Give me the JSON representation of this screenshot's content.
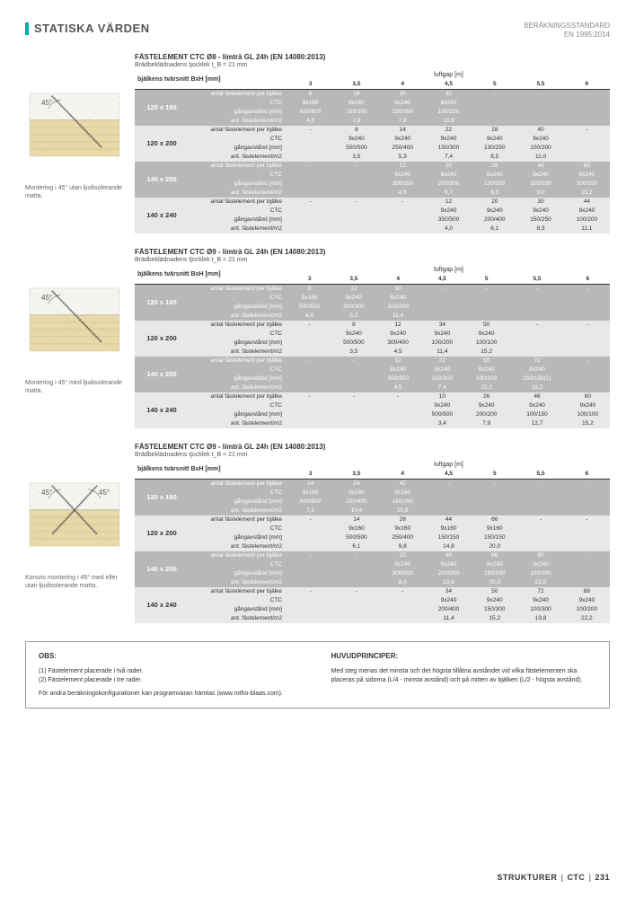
{
  "header": {
    "title": "STATISKA VÄRDEN",
    "std1": "BERÄKNINGSSTANDARD",
    "std2": "EN 1995:2014"
  },
  "cols": [
    "3",
    "3,5",
    "4",
    "4,5",
    "5",
    "5,5",
    "6"
  ],
  "th_bjalk": "bjälkens tvärsnitt BxH [mm]",
  "th_luft": "luftgap [m]",
  "rowlabels": [
    "antal fästelement per bjälke",
    "CTC",
    "gångavstånd [mm]",
    "ant. fästelement/m2"
  ],
  "tables": [
    {
      "title": "FÄSTELEMENT CTC Ø8 - limträ GL 24h (EN 14080:2013)",
      "sub": "Brädbeklädnadens tjocklek t_B = 21 mm",
      "caption": "Montering i 45° utan ljudisolerande matta.",
      "diag": "single",
      "dims": [
        {
          "d": "120 x 160",
          "shade": "dark",
          "rows": [
            [
              "8",
              "18",
              "30",
              "32",
              "-",
              "-",
              "-"
            ],
            [
              "8x160",
              "8x240",
              "8x240",
              "8x240",
              "",
              "",
              ""
            ],
            [
              "600/600",
              "150/300",
              "150/300",
              "100/250",
              "",
              "",
              ""
            ],
            [
              "4,0",
              "7,8",
              "7,8",
              "10,8",
              "",
              "",
              ""
            ]
          ]
        },
        {
          "d": "120 x 200",
          "shade": "light",
          "rows": [
            [
              "-",
              "8",
              "14",
              "22",
              "28",
              "40",
              "-"
            ],
            [
              "",
              "9x240",
              "9x240",
              "9x240",
              "9x240",
              "9x240",
              ""
            ],
            [
              "",
              "500/500",
              "250/400",
              "150/300",
              "130/250",
              "100/200",
              ""
            ],
            [
              "",
              "3,5",
              "5,3",
              "7,4",
              "8,5",
              "11,0",
              ""
            ]
          ]
        },
        {
          "d": "140 x 200",
          "shade": "dark",
          "rows": [
            [
              "-",
              "-",
              "12",
              "20",
              "28",
              "40",
              "60"
            ],
            [
              "",
              "",
              "8x240",
              "8x240",
              "8x240",
              "8x240",
              "8x240"
            ],
            [
              "",
              "",
              "350/350",
              "200/300",
              "120/250",
              "100/200",
              "100/100"
            ],
            [
              "",
              "",
              "4,5",
              "6,7",
              "8,5",
              "9,0",
              "15,2"
            ]
          ]
        },
        {
          "d": "140 x 240",
          "shade": "light",
          "rows": [
            [
              "-",
              "-",
              "-",
              "12",
              "20",
              "30",
              "44"
            ],
            [
              "",
              "",
              "",
              "9x240",
              "9x240",
              "9x240",
              "9x240"
            ],
            [
              "",
              "",
              "",
              "350/500",
              "200/400",
              "150/250",
              "100/200"
            ],
            [
              "",
              "",
              "",
              "4,0",
              "6,1",
              "8,3",
              "11,1"
            ]
          ]
        }
      ]
    },
    {
      "title": "FÄSTELEMENT CTC Ø9 - limträ GL 24h (EN 14080:2013)",
      "sub": "Brädbeklädnadens tjocklek t_B = 21 mm",
      "caption": "Montering i 45° med ljudisolerande matta.",
      "diag": "single",
      "dims": [
        {
          "d": "120 x 160",
          "shade": "dark",
          "rows": [
            [
              "8",
              "12",
              "30",
              "-",
              "-",
              "-",
              "-"
            ],
            [
              "8x160",
              "8x240",
              "8x240",
              "",
              "",
              "",
              ""
            ],
            [
              "500/500",
              "300/300",
              "100/200",
              "",
              "",
              "",
              ""
            ],
            [
              "4,0",
              "5,2",
              "11,4",
              "",
              "",
              "",
              ""
            ]
          ]
        },
        {
          "d": "120 x 200",
          "shade": "light",
          "rows": [
            [
              "-",
              "8",
              "12",
              "34",
              "50",
              "-",
              "-"
            ],
            [
              "",
              "9x240",
              "9x240",
              "9x240",
              "9x240",
              "",
              ""
            ],
            [
              "",
              "500/500",
              "300/400",
              "100/200",
              "100/100",
              "",
              ""
            ],
            [
              "",
              "3,5",
              "4,5",
              "11,4",
              "15,2",
              "",
              ""
            ]
          ]
        },
        {
          "d": "140 x 200",
          "shade": "dark",
          "rows": [
            [
              "-",
              "-",
              "12",
              "22",
              "50",
              "72",
              "-"
            ],
            [
              "",
              "",
              "8x240",
              "8x240",
              "8x240",
              "8x240",
              ""
            ],
            [
              "",
              "",
              "350/350",
              "150/300",
              "100/100",
              "150/150(1)",
              ""
            ],
            [
              "",
              "",
              "4,5",
              "7,4",
              "15,2",
              "18,2",
              ""
            ]
          ]
        },
        {
          "d": "140 x 240",
          "shade": "light",
          "rows": [
            [
              "-",
              "-",
              "-",
              "10",
              "26",
              "46",
              "60"
            ],
            [
              "",
              "",
              "",
              "9x240",
              "9x240",
              "9x240",
              "9x240"
            ],
            [
              "",
              "",
              "",
              "500/500",
              "200/200",
              "100/150",
              "100/100"
            ],
            [
              "",
              "",
              "",
              "3,4",
              "7,9",
              "12,7",
              "15,2"
            ]
          ]
        }
      ]
    },
    {
      "title": "FÄSTELEMENT CTC Ø9 - limträ GL 24h (EN 14080:2013)",
      "sub": "Brädbeklädnadens tjocklek t_B = 21 mm",
      "caption": "Korsvis montering i 45° med eller utan ljudisolerande matta.",
      "diag": "cross",
      "dims": [
        {
          "d": "120 x 160",
          "shade": "dark",
          "rows": [
            [
              "14",
              "24",
              "42",
              "-",
              "-",
              "-",
              "-"
            ],
            [
              "9x160",
              "9x160",
              "9x160",
              "",
              "",
              "",
              ""
            ],
            [
              "600/600",
              "250/400",
              "160/260",
              "",
              "",
              "",
              ""
            ],
            [
              "7,1",
              "10,4",
              "15,9",
              "",
              "",
              "",
              ""
            ]
          ]
        },
        {
          "d": "120 x 200",
          "shade": "light",
          "rows": [
            [
              "-",
              "14",
              "26",
              "44",
              "66",
              "-",
              "-"
            ],
            [
              "",
              "9x160",
              "9x160",
              "9x160",
              "9x160",
              "",
              ""
            ],
            [
              "",
              "500/500",
              "250/400",
              "150/150",
              "150/150",
              "",
              ""
            ],
            [
              "",
              "6,1",
              "9,8",
              "14,8",
              "20,0",
              "",
              ""
            ]
          ]
        },
        {
          "d": "140 x 200",
          "shade": "dark",
          "rows": [
            [
              "-",
              "-",
              "22",
              "40",
              "66",
              "80",
              "-"
            ],
            [
              "",
              "",
              "9x240",
              "9x240",
              "9x240",
              "9x240",
              ""
            ],
            [
              "",
              "",
              "300/500",
              "200/260",
              "160/160",
              "100/300",
              ""
            ],
            [
              "",
              "",
              "8,3",
              "13,6",
              "20,0",
              "22,0",
              ""
            ]
          ]
        },
        {
          "d": "140 x 240",
          "shade": "light",
          "rows": [
            [
              "-",
              "-",
              "-",
              "34",
              "50",
              "72",
              "88"
            ],
            [
              "",
              "",
              "",
              "9x240",
              "9x240",
              "9x240",
              "9x240"
            ],
            [
              "",
              "",
              "",
              "200/400",
              "150/300",
              "100/300",
              "100/200"
            ],
            [
              "",
              "",
              "",
              "11,4",
              "15,2",
              "19,8",
              "22,2"
            ]
          ]
        }
      ]
    }
  ],
  "obs": {
    "h1": "OBS:",
    "n1": "(1) Fästelement placerade i två rader.",
    "n2": "(2) Fästelement placerade i tre rader.",
    "n3": "För andra beräkningskonfigurationer kan programvaran hämtas (www.rotho-blaas.com).",
    "h2": "HUVUDPRINCIPER:",
    "t2": "Med steg menas det minsta och det högsta tillåtna avståndet vid vilka fäst­elementen ska placeras på sidorna (L/4 - minsta avstånd) och på mitten av bjälken (L/2 - högsta avstånd)."
  },
  "footer": {
    "a": "STRUKTURER",
    "b": "CTC",
    "c": "231"
  },
  "colors": {
    "teal": "#00a9a5",
    "dark": "#b8b8b8",
    "light": "#e8e8e8",
    "wood": "#e8d9a8"
  }
}
